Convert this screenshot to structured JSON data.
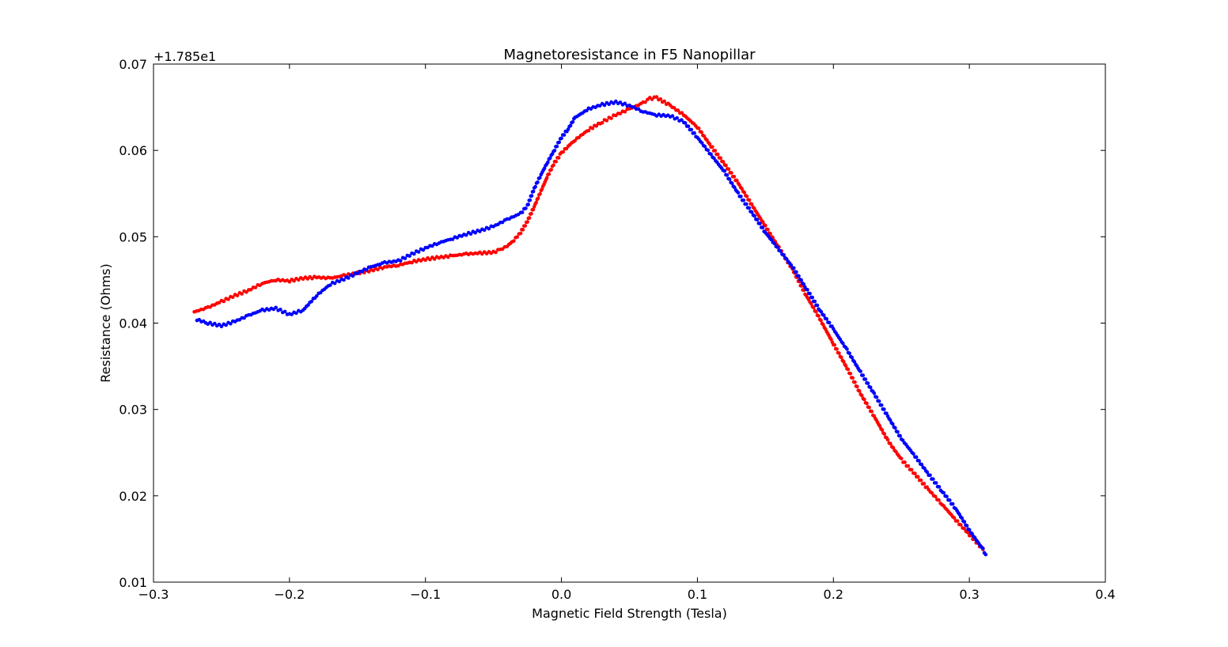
{
  "chart_data": {
    "type": "scatter",
    "title": "Magnetoresistance in F5 Nanopillar",
    "xlabel": "Magnetic Field Strength (Tesla)",
    "ylabel": "Resistance (Ohms)",
    "offset_label": "+1.785e1",
    "xlim": [
      -0.3,
      0.4
    ],
    "ylim": [
      0.01,
      0.07
    ],
    "xticks": [
      -0.3,
      -0.2,
      -0.1,
      0.0,
      0.1,
      0.2,
      0.3,
      0.4
    ],
    "xtick_labels": [
      "−0.3",
      "−0.2",
      "−0.1",
      "0.0",
      "0.1",
      "0.2",
      "0.3",
      "0.4"
    ],
    "yticks": [
      0.01,
      0.02,
      0.03,
      0.04,
      0.05,
      0.06,
      0.07
    ],
    "ytick_labels": [
      "0.01",
      "0.02",
      "0.03",
      "0.04",
      "0.05",
      "0.06",
      "0.07"
    ],
    "grid": false,
    "legend": false,
    "series": [
      {
        "color": "#ff0000",
        "x": [
          -0.27,
          -0.26,
          -0.25,
          -0.24,
          -0.23,
          -0.22,
          -0.21,
          -0.2,
          -0.19,
          -0.18,
          -0.17,
          -0.16,
          -0.15,
          -0.14,
          -0.13,
          -0.12,
          -0.11,
          -0.1,
          -0.09,
          -0.08,
          -0.07,
          -0.06,
          -0.05,
          -0.045,
          -0.04,
          -0.035,
          -0.03,
          -0.025,
          -0.02,
          -0.015,
          -0.01,
          -0.005,
          0.0,
          0.005,
          0.01,
          0.02,
          0.03,
          0.04,
          0.05,
          0.06,
          0.065,
          0.07,
          0.08,
          0.09,
          0.1,
          0.11,
          0.12,
          0.13,
          0.14,
          0.15,
          0.16,
          0.17,
          0.18,
          0.19,
          0.2,
          0.21,
          0.22,
          0.23,
          0.24,
          0.25,
          0.26,
          0.27,
          0.28,
          0.29,
          0.3,
          0.31
        ],
        "y": [
          0.0413,
          0.0418,
          0.0425,
          0.0432,
          0.0438,
          0.0446,
          0.045,
          0.0449,
          0.0452,
          0.0453,
          0.0452,
          0.0455,
          0.0458,
          0.0461,
          0.0465,
          0.0467,
          0.0471,
          0.0474,
          0.0476,
          0.0478,
          0.048,
          0.0481,
          0.0482,
          0.0485,
          0.0489,
          0.0496,
          0.0505,
          0.0518,
          0.0535,
          0.0553,
          0.0571,
          0.0586,
          0.0597,
          0.0605,
          0.0612,
          0.0624,
          0.0633,
          0.0641,
          0.0648,
          0.0655,
          0.066,
          0.0661,
          0.0652,
          0.0641,
          0.0627,
          0.0605,
          0.0584,
          0.0562,
          0.0537,
          0.0512,
          0.0487,
          0.0462,
          0.0432,
          0.0405,
          0.0376,
          0.0348,
          0.0318,
          0.0292,
          0.0264,
          0.0242,
          0.0225,
          0.0207,
          0.019,
          0.0172,
          0.0155,
          0.0138
        ]
      },
      {
        "color": "#0000ff",
        "x": [
          -0.268,
          -0.26,
          -0.25,
          -0.24,
          -0.23,
          -0.22,
          -0.21,
          -0.2,
          -0.19,
          -0.18,
          -0.17,
          -0.16,
          -0.15,
          -0.14,
          -0.13,
          -0.12,
          -0.11,
          -0.1,
          -0.09,
          -0.08,
          -0.07,
          -0.06,
          -0.05,
          -0.04,
          -0.03,
          -0.025,
          -0.02,
          -0.015,
          -0.01,
          -0.005,
          0.0,
          0.005,
          0.01,
          0.02,
          0.03,
          0.04,
          0.05,
          0.06,
          0.07,
          0.08,
          0.09,
          0.1,
          0.11,
          0.12,
          0.13,
          0.14,
          0.15,
          0.16,
          0.17,
          0.18,
          0.19,
          0.2,
          0.21,
          0.22,
          0.23,
          0.24,
          0.25,
          0.26,
          0.27,
          0.28,
          0.29,
          0.3,
          0.31,
          0.312
        ],
        "y": [
          0.0404,
          0.04,
          0.0397,
          0.0402,
          0.0409,
          0.0415,
          0.0417,
          0.041,
          0.0415,
          0.0432,
          0.0445,
          0.0451,
          0.0458,
          0.0465,
          0.047,
          0.0472,
          0.048,
          0.0487,
          0.0493,
          0.0498,
          0.0503,
          0.0507,
          0.0512,
          0.052,
          0.0527,
          0.0536,
          0.0556,
          0.0572,
          0.0587,
          0.0601,
          0.0615,
          0.0625,
          0.0638,
          0.0648,
          0.0653,
          0.0656,
          0.0652,
          0.0645,
          0.0641,
          0.064,
          0.0633,
          0.0615,
          0.0595,
          0.0575,
          0.055,
          0.0528,
          0.0505,
          0.0485,
          0.0465,
          0.044,
          0.0415,
          0.0393,
          0.0369,
          0.0343,
          0.0318,
          0.0292,
          0.0266,
          0.0246,
          0.0225,
          0.0205,
          0.0185,
          0.016,
          0.0138,
          0.0132
        ]
      }
    ]
  }
}
